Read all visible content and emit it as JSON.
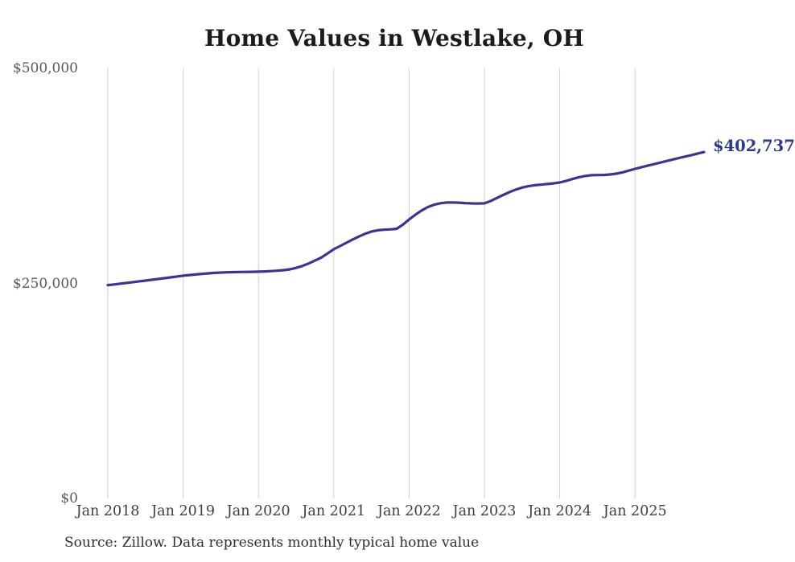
{
  "page": {
    "title": "Home Values in Westlake, OH",
    "source_note": "Source: Zillow. Data represents monthly typical home value"
  },
  "chart_data": {
    "type": "line",
    "title": "Home Values in Westlake, OH",
    "series_name": "Typical home value (monthly)",
    "x_frequency": "monthly",
    "x_start": "2018-01",
    "x_end": "2025-12",
    "xtick_labels": [
      "Jan 2018",
      "Jan 2019",
      "Jan 2020",
      "Jan 2021",
      "Jan 2022",
      "Jan 2023",
      "Jan 2024",
      "Jan 2025"
    ],
    "ytick_labels": [
      "$0",
      "$250,000",
      "$500,000"
    ],
    "ytick_values": [
      0,
      250000,
      500000
    ],
    "ylim": [
      0,
      500000
    ],
    "grid": "vertical-only",
    "legend": "none",
    "line_color": "#3c3493",
    "gridline_color": "#cfcfcf",
    "end_label": "$402,737",
    "end_label_color": "#2b3a8c",
    "final_value": 402737,
    "values": [
      248000,
      248800,
      249700,
      250600,
      251500,
      252400,
      253300,
      254200,
      255100,
      256100,
      257000,
      258000,
      259000,
      259700,
      260400,
      261100,
      261700,
      262200,
      262600,
      262900,
      263100,
      263300,
      263400,
      263500,
      263600,
      263900,
      264300,
      264800,
      265400,
      266400,
      268000,
      270300,
      273200,
      276500,
      280000,
      284800,
      289700,
      293500,
      297200,
      301000,
      304500,
      307800,
      310300,
      311800,
      312400,
      312800,
      313500,
      318200,
      324300,
      329800,
      334800,
      338800,
      341500,
      343200,
      344000,
      344100,
      343800,
      343300,
      343000,
      342900,
      343100,
      345800,
      349300,
      352800,
      356200,
      359100,
      361400,
      363000,
      364100,
      364800,
      365500,
      366300,
      367300,
      369200,
      371300,
      373300,
      374900,
      375800,
      376000,
      376100,
      376600,
      377600,
      379100,
      381100,
      383200,
      385000,
      386800,
      388600,
      390400,
      392200,
      394000,
      395800,
      397500,
      399200,
      401000,
      402737
    ]
  }
}
